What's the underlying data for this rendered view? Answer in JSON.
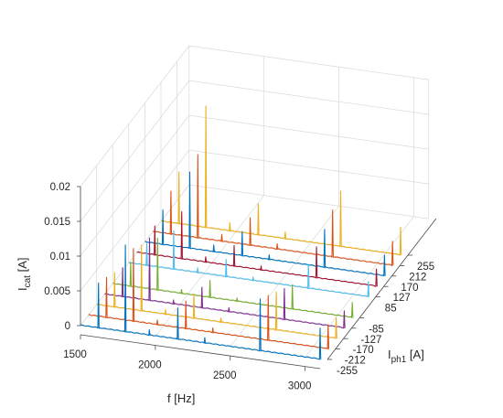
{
  "chart_data": {
    "type": "line",
    "subtype": "3d-waterfall",
    "title": "",
    "xlabel": "f [Hz]",
    "ylabel": "I_ph1 [A]",
    "zlabel": "I_cat [A]",
    "xlim": [
      1500,
      3100
    ],
    "zlim": [
      0,
      0.02
    ],
    "x_ticks": [
      "1500",
      "2000",
      "2500",
      "3000"
    ],
    "y_ticks": [
      "-255",
      "-212",
      "-170",
      "-127",
      "-85",
      "85",
      "127",
      "170",
      "212",
      "255"
    ],
    "z_ticks": [
      "0",
      "0.005",
      "0.01",
      "0.015",
      "0.02"
    ],
    "grid": true,
    "series": [
      {
        "I_ph1": "-255",
        "color": "#0072BD",
        "peaks": [
          [
            1620,
            0.0065
          ],
          [
            1800,
            0.0125
          ],
          [
            1960,
            0.0008
          ],
          [
            2150,
            0.0045
          ],
          [
            2330,
            0.0008
          ],
          [
            2700,
            0.0075
          ],
          [
            3100,
            0.0045
          ]
        ]
      },
      {
        "I_ph1": "-212",
        "color": "#D95319",
        "peaks": [
          [
            1620,
            0.0058
          ],
          [
            1800,
            0.0105
          ],
          [
            1960,
            0.0007
          ],
          [
            2150,
            0.004
          ],
          [
            2330,
            0.0007
          ],
          [
            2700,
            0.0065
          ],
          [
            3100,
            0.0035
          ]
        ]
      },
      {
        "I_ph1": "-170",
        "color": "#EDB120",
        "peaks": [
          [
            1620,
            0.005
          ],
          [
            1800,
            0.0095
          ],
          [
            1960,
            0.0007
          ],
          [
            2150,
            0.0035
          ],
          [
            2330,
            0.0006
          ],
          [
            2700,
            0.0055
          ],
          [
            3100,
            0.003
          ]
        ]
      },
      {
        "I_ph1": "-127",
        "color": "#7E2F8E",
        "peaks": [
          [
            1620,
            0.0042
          ],
          [
            1800,
            0.009
          ],
          [
            1960,
            0.0006
          ],
          [
            2150,
            0.003
          ],
          [
            2330,
            0.0006
          ],
          [
            2700,
            0.0045
          ],
          [
            3100,
            0.0025
          ]
        ]
      },
      {
        "I_ph1": "-85",
        "color": "#77AC30",
        "peaks": [
          [
            1620,
            0.0035
          ],
          [
            1800,
            0.0075
          ],
          [
            1960,
            0.0006
          ],
          [
            2150,
            0.0025
          ],
          [
            2330,
            0.0005
          ],
          [
            2700,
            0.0035
          ],
          [
            3100,
            0.0022
          ]
        ]
      },
      {
        "I_ph1": "85",
        "color": "#4DBEEE",
        "peaks": [
          [
            1620,
            0.0032
          ],
          [
            1800,
            0.0055
          ],
          [
            1960,
            0.0007
          ],
          [
            2150,
            0.0025
          ],
          [
            2330,
            0.0005
          ],
          [
            2700,
            0.0035
          ],
          [
            3100,
            0.0022
          ]
        ]
      },
      {
        "I_ph1": "127",
        "color": "#A2142F",
        "peaks": [
          [
            1620,
            0.0042
          ],
          [
            1800,
            0.0068
          ],
          [
            1960,
            0.0008
          ],
          [
            2150,
            0.003
          ],
          [
            2330,
            0.0006
          ],
          [
            2700,
            0.0045
          ],
          [
            3100,
            0.0025
          ]
        ]
      },
      {
        "I_ph1": "170",
        "color": "#0072BD",
        "peaks": [
          [
            1620,
            0.005
          ],
          [
            1800,
            0.011
          ],
          [
            1960,
            0.001
          ],
          [
            2150,
            0.0035
          ],
          [
            2330,
            0.0007
          ],
          [
            2700,
            0.0055
          ],
          [
            3100,
            0.003
          ]
        ]
      },
      {
        "I_ph1": "212",
        "color": "#D95319",
        "peaks": [
          [
            1620,
            0.0062
          ],
          [
            1800,
            0.012
          ],
          [
            1960,
            0.001
          ],
          [
            2150,
            0.004
          ],
          [
            2330,
            0.0008
          ],
          [
            2700,
            0.0068
          ],
          [
            3100,
            0.0035
          ]
        ]
      },
      {
        "I_ph1": "255",
        "color": "#EDB120",
        "peaks": [
          [
            1620,
            0.0075
          ],
          [
            1800,
            0.0175
          ],
          [
            1960,
            0.0012
          ],
          [
            2150,
            0.0045
          ],
          [
            2330,
            0.001
          ],
          [
            2700,
            0.008
          ],
          [
            3100,
            0.004
          ]
        ]
      }
    ]
  }
}
